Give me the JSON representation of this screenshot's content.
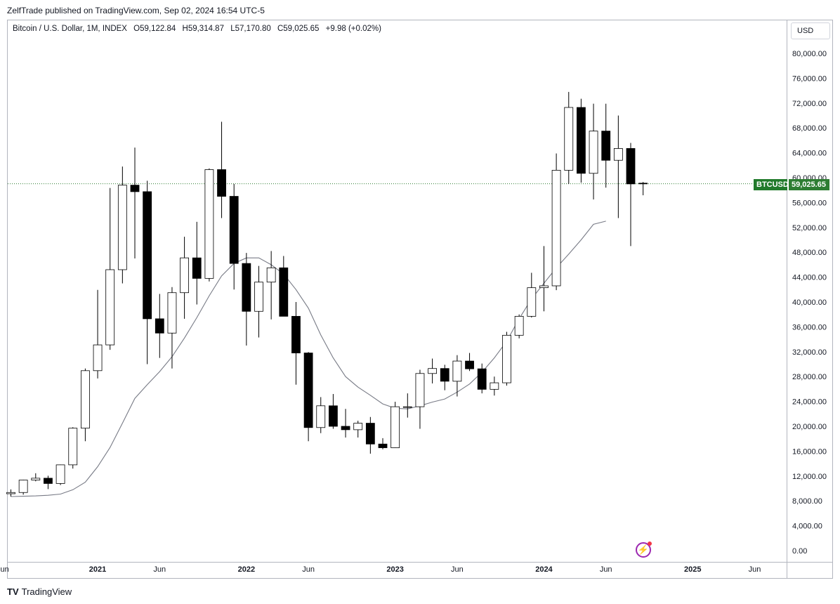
{
  "header": {
    "publisher_text": "ZelfTrade published on TradingView.com, Sep 02, 2024 16:54 UTC-5"
  },
  "legend": {
    "symbol": "Bitcoin / U.S. Dollar, 1M, INDEX",
    "o_label": "O",
    "o": "59,122.84",
    "h_label": "H",
    "h": "59,314.87",
    "l_label": "L",
    "l": "57,170.80",
    "c_label": "C",
    "c": "59,025.65",
    "change": "+9.98 (+0.02%)"
  },
  "currency_button": "USD",
  "price_tag": {
    "name": "BTCUSD",
    "value": "59,025.65"
  },
  "footer": {
    "brand_logo": "TV",
    "brand_name": "TradingView"
  },
  "icons": {
    "bolt": "lightning-icon",
    "logo": "tradingview-logo-icon"
  },
  "colors": {
    "up_fill": "#ffffff",
    "down_fill": "#000000",
    "ma_line": "#787b86",
    "last_price": "#2e7d32"
  },
  "chart_data": {
    "type": "candlestick",
    "interval": "1M",
    "y_ticks": [
      "0.00",
      "4,000.00",
      "8,000.00",
      "12,000.00",
      "16,000.00",
      "20,000.00",
      "24,000.00",
      "28,000.00",
      "32,000.00",
      "36,000.00",
      "40,000.00",
      "44,000.00",
      "48,000.00",
      "52,000.00",
      "56,000.00",
      "60,000.00",
      "64,000.00",
      "68,000.00",
      "72,000.00",
      "76,000.00",
      "80,000.00"
    ],
    "ylim": [
      0,
      80000
    ],
    "x_ticks": [
      {
        "label": "un",
        "index": -0.5
      },
      {
        "label": "2021",
        "index": 7
      },
      {
        "label": "Jun",
        "index": 12
      },
      {
        "label": "2022",
        "index": 19
      },
      {
        "label": "Jun",
        "index": 24
      },
      {
        "label": "2023",
        "index": 31
      },
      {
        "label": "Jun",
        "index": 36
      },
      {
        "label": "2024",
        "index": 43
      },
      {
        "label": "Jun",
        "index": 48
      },
      {
        "label": "2025",
        "index": 55
      },
      {
        "label": "Jun",
        "index": 60
      }
    ],
    "candles": [
      {
        "o": 9150,
        "h": 9850,
        "l": 8700,
        "c": 9350
      },
      {
        "o": 9350,
        "h": 11400,
        "l": 9000,
        "c": 11350
      },
      {
        "o": 11350,
        "h": 12450,
        "l": 11150,
        "c": 11650
      },
      {
        "o": 11650,
        "h": 12050,
        "l": 9900,
        "c": 10800
      },
      {
        "o": 10800,
        "h": 13850,
        "l": 10550,
        "c": 13800
      },
      {
        "o": 13800,
        "h": 19850,
        "l": 13200,
        "c": 19700
      },
      {
        "o": 19700,
        "h": 29300,
        "l": 17600,
        "c": 28950
      },
      {
        "o": 28950,
        "h": 41950,
        "l": 27700,
        "c": 33100
      },
      {
        "o": 33100,
        "h": 58350,
        "l": 32300,
        "c": 45200
      },
      {
        "o": 45200,
        "h": 61800,
        "l": 43000,
        "c": 58800
      },
      {
        "o": 58800,
        "h": 64850,
        "l": 47000,
        "c": 57750
      },
      {
        "o": 57750,
        "h": 59500,
        "l": 30000,
        "c": 37300
      },
      {
        "o": 37300,
        "h": 41300,
        "l": 31000,
        "c": 35000
      },
      {
        "o": 35000,
        "h": 42400,
        "l": 29300,
        "c": 41500
      },
      {
        "o": 41500,
        "h": 50500,
        "l": 37300,
        "c": 47100
      },
      {
        "o": 47100,
        "h": 52900,
        "l": 39600,
        "c": 43800
      },
      {
        "o": 43800,
        "h": 61500,
        "l": 43300,
        "c": 61300
      },
      {
        "o": 61300,
        "h": 69000,
        "l": 53500,
        "c": 57000
      },
      {
        "o": 57000,
        "h": 59000,
        "l": 42000,
        "c": 46200
      },
      {
        "o": 46200,
        "h": 47900,
        "l": 33000,
        "c": 38500
      },
      {
        "o": 38500,
        "h": 45800,
        "l": 34300,
        "c": 43200
      },
      {
        "o": 43200,
        "h": 48200,
        "l": 37200,
        "c": 45500
      },
      {
        "o": 45500,
        "h": 47400,
        "l": 37700,
        "c": 37700
      },
      {
        "o": 37700,
        "h": 40000,
        "l": 26700,
        "c": 31800
      },
      {
        "o": 31800,
        "h": 31950,
        "l": 17600,
        "c": 19800
      },
      {
        "o": 19800,
        "h": 24700,
        "l": 18900,
        "c": 23300
      },
      {
        "o": 23300,
        "h": 25200,
        "l": 19600,
        "c": 20000
      },
      {
        "o": 20000,
        "h": 22800,
        "l": 18200,
        "c": 19450
      },
      {
        "o": 19450,
        "h": 20900,
        "l": 18200,
        "c": 20500
      },
      {
        "o": 20500,
        "h": 21500,
        "l": 15600,
        "c": 17150
      },
      {
        "o": 17150,
        "h": 18100,
        "l": 16300,
        "c": 16550
      },
      {
        "o": 16550,
        "h": 23950,
        "l": 16500,
        "c": 23150
      },
      {
        "o": 23150,
        "h": 25300,
        "l": 21400,
        "c": 23150
      },
      {
        "o": 23150,
        "h": 29100,
        "l": 19600,
        "c": 28500
      },
      {
        "o": 28500,
        "h": 30900,
        "l": 26900,
        "c": 29300
      },
      {
        "o": 29300,
        "h": 29900,
        "l": 25800,
        "c": 27250
      },
      {
        "o": 27250,
        "h": 31450,
        "l": 24800,
        "c": 30500
      },
      {
        "o": 30500,
        "h": 31800,
        "l": 28900,
        "c": 29250
      },
      {
        "o": 29250,
        "h": 30100,
        "l": 25300,
        "c": 25950
      },
      {
        "o": 25950,
        "h": 28000,
        "l": 24950,
        "c": 27000
      },
      {
        "o": 27000,
        "h": 35200,
        "l": 26550,
        "c": 34650
      },
      {
        "o": 34650,
        "h": 38000,
        "l": 34150,
        "c": 37700
      },
      {
        "o": 37700,
        "h": 44700,
        "l": 37500,
        "c": 42300
      },
      {
        "o": 42300,
        "h": 49000,
        "l": 38500,
        "c": 42600
      },
      {
        "o": 42600,
        "h": 63900,
        "l": 41900,
        "c": 61200
      },
      {
        "o": 61200,
        "h": 73800,
        "l": 59000,
        "c": 71300
      },
      {
        "o": 71300,
        "h": 72700,
        "l": 59200,
        "c": 60700
      },
      {
        "o": 60700,
        "h": 71900,
        "l": 56500,
        "c": 67500
      },
      {
        "o": 67500,
        "h": 71900,
        "l": 58400,
        "c": 62800
      },
      {
        "o": 62800,
        "h": 70000,
        "l": 53500,
        "c": 64700
      },
      {
        "o": 64700,
        "h": 65600,
        "l": 49000,
        "c": 59000
      },
      {
        "o": 59120,
        "h": 59310,
        "l": 57170,
        "c": 59030
      }
    ],
    "moving_average": [
      8700,
      8750,
      8800,
      8900,
      9100,
      9800,
      11000,
      13500,
      16600,
      20500,
      24500,
      26700,
      28800,
      31200,
      34200,
      37500,
      41000,
      44200,
      46200,
      47100,
      47100,
      46000,
      44500,
      42000,
      39000,
      34700,
      31000,
      28000,
      26300,
      25000,
      23600,
      22900,
      22800,
      23300,
      23900,
      24400,
      25500,
      26800,
      28700,
      31000,
      33700,
      37300,
      40500,
      43000,
      45500,
      47700,
      50000,
      52500,
      53000
    ],
    "ma_start_index": 0,
    "last_price": 59025.65
  }
}
